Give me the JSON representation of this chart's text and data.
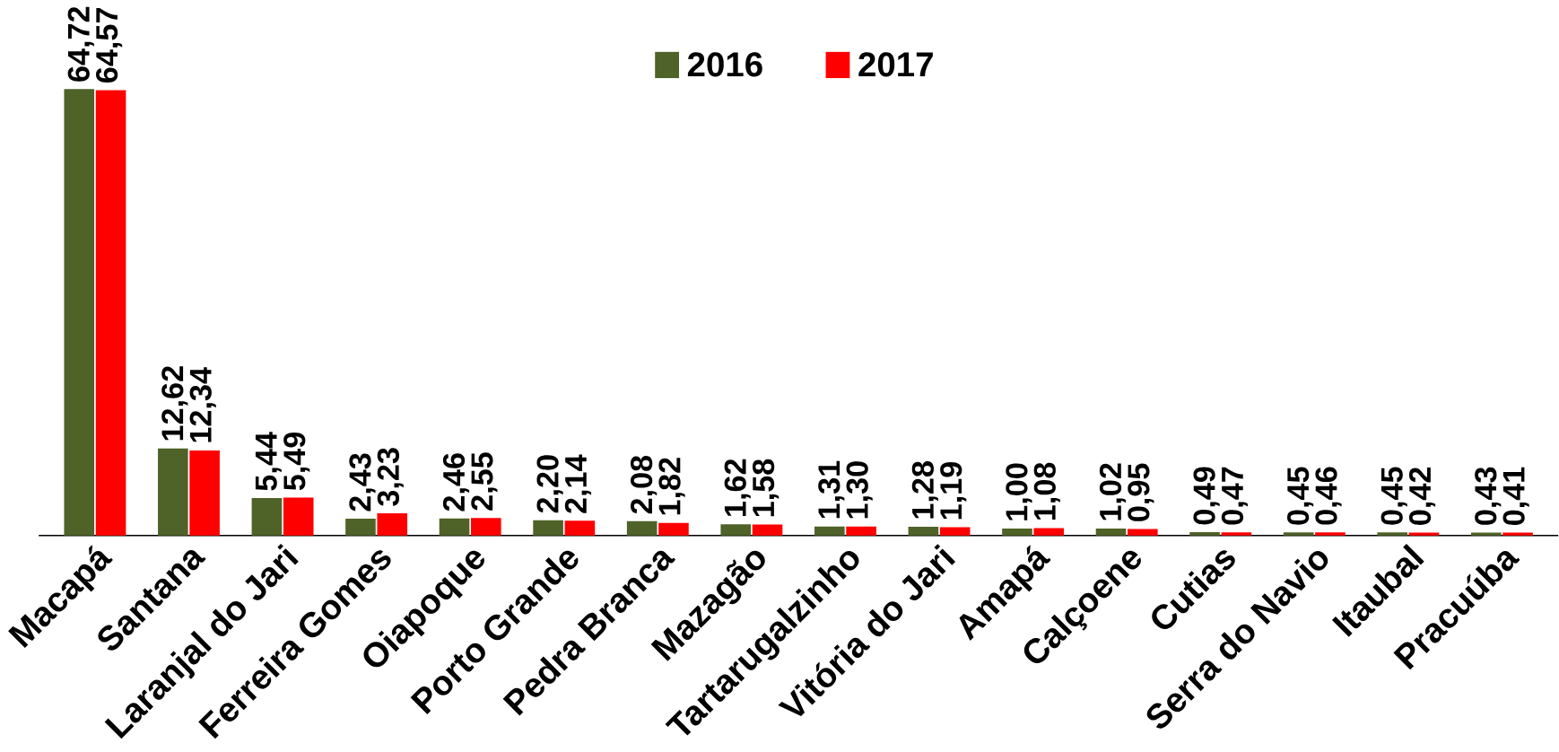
{
  "chart_data": {
    "type": "bar",
    "categories": [
      "Macapá",
      "Santana",
      "Laranjal do Jari",
      "Ferreira Gomes",
      "Oiapoque",
      "Porto Grande",
      "Pedra Branca",
      "Mazagão",
      "Tartarugalzinho",
      "Vitória do Jari",
      "Amapá",
      "Calçoene",
      "Cutias",
      "Serra do Navio",
      "Itaubal",
      "Pracuúba"
    ],
    "series": [
      {
        "name": "2016",
        "color": "#4f6228",
        "values": [
          64.72,
          12.62,
          5.44,
          2.43,
          2.46,
          2.2,
          2.08,
          1.62,
          1.31,
          1.28,
          1.0,
          1.02,
          0.49,
          0.45,
          0.45,
          0.43
        ],
        "value_labels": [
          "64,72",
          "12,62",
          "5,44",
          "2,43",
          "2,46",
          "2,20",
          "2,08",
          "1,62",
          "1,31",
          "1,28",
          "1,00",
          "1,02",
          "0,49",
          "0,45",
          "0,45",
          "0,43"
        ]
      },
      {
        "name": "2017",
        "color": "#ff0000",
        "values": [
          64.57,
          12.34,
          5.49,
          3.23,
          2.55,
          2.14,
          1.82,
          1.58,
          1.3,
          1.19,
          1.08,
          0.95,
          0.47,
          0.46,
          0.42,
          0.41
        ],
        "value_labels": [
          "64,57",
          "12,34",
          "5,49",
          "3,23",
          "2,55",
          "2,14",
          "1,82",
          "1,58",
          "1,30",
          "1,19",
          "1,08",
          "0,95",
          "0,47",
          "0,46",
          "0,42",
          "0,41"
        ]
      }
    ],
    "legend": "top"
  }
}
